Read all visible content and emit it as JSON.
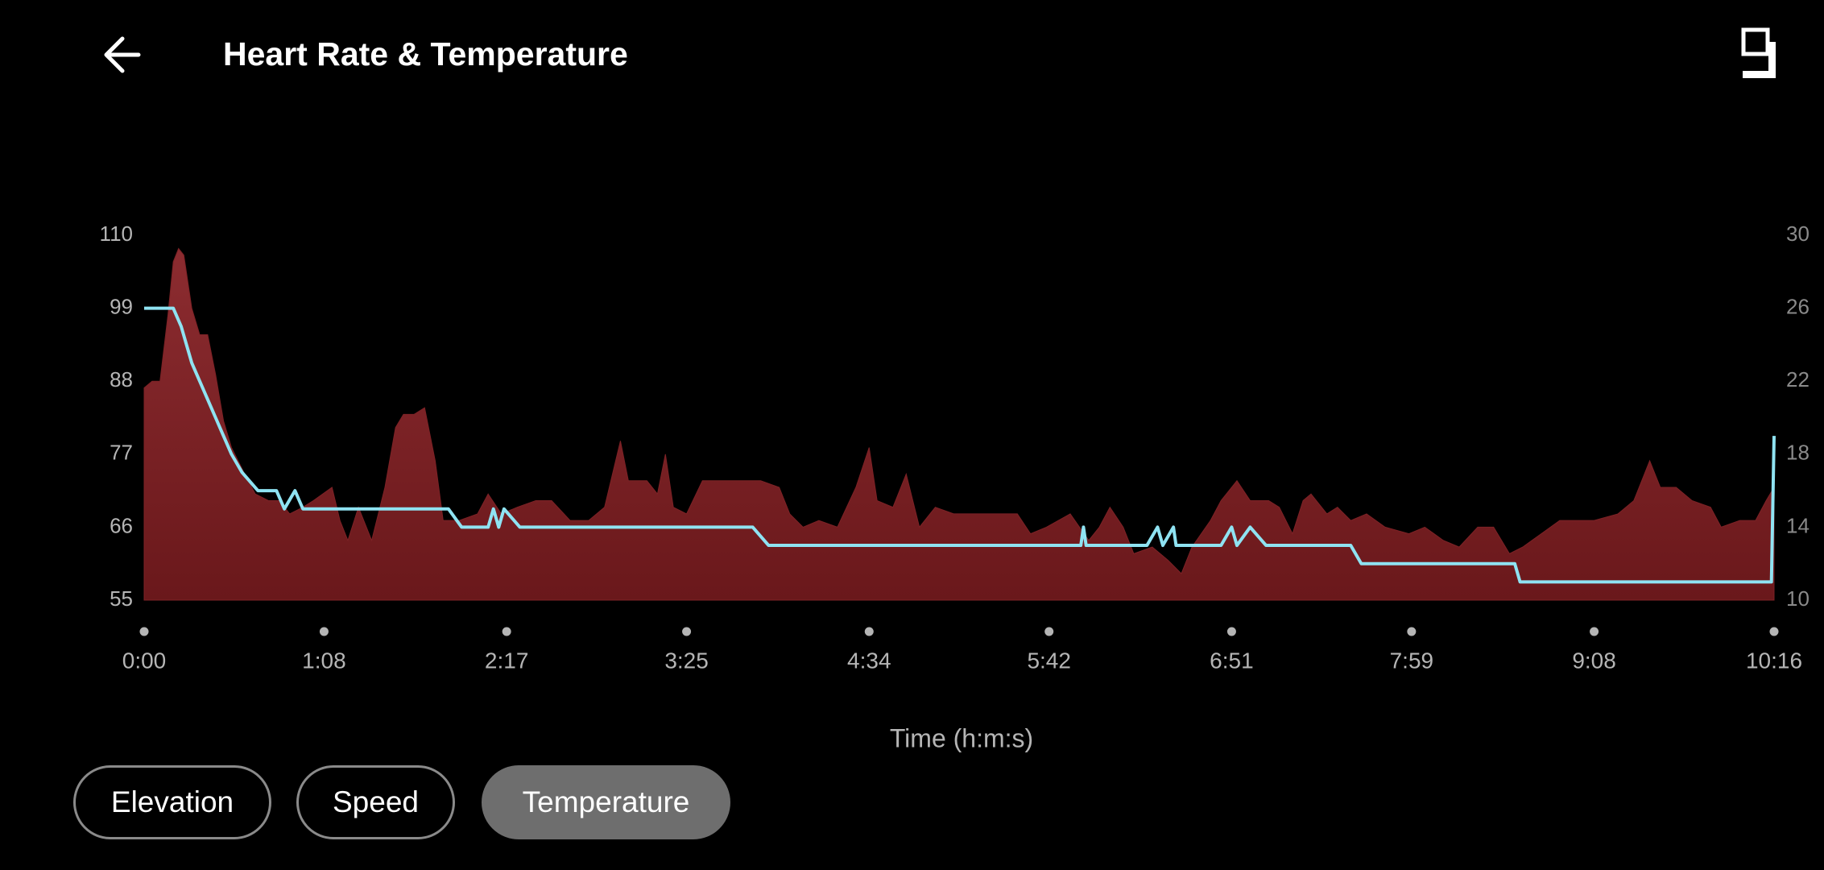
{
  "header": {
    "title": "Heart Rate & Temperature"
  },
  "chart_data": {
    "type": "area",
    "xlabel": "Time (h:m:s)",
    "xlim": [
      0,
      616
    ],
    "xticks": [
      {
        "value": 0,
        "label": "0:00"
      },
      {
        "value": 68,
        "label": "1:08"
      },
      {
        "value": 137,
        "label": "2:17"
      },
      {
        "value": 205,
        "label": "3:25"
      },
      {
        "value": 274,
        "label": "4:34"
      },
      {
        "value": 342,
        "label": "5:42"
      },
      {
        "value": 411,
        "label": "6:51"
      },
      {
        "value": 479,
        "label": "7:59"
      },
      {
        "value": 548,
        "label": "9:08"
      },
      {
        "value": 616,
        "label": "10:16"
      }
    ],
    "ylim": [
      55,
      110
    ],
    "yticks": [
      55,
      66,
      77,
      88,
      99,
      110
    ],
    "y2lim": [
      10,
      30
    ],
    "y2ticks": [
      10,
      14,
      18,
      22,
      26,
      30
    ],
    "grid": false,
    "series": [
      {
        "type": "area",
        "color": "#7d2226",
        "x": [
          0,
          3,
          6,
          9,
          11,
          13,
          15,
          18,
          21,
          24,
          27,
          30,
          33,
          38,
          42,
          47,
          51,
          55,
          60,
          64,
          71,
          74,
          77,
          81,
          86,
          91,
          95,
          98,
          102,
          106,
          110,
          113,
          119,
          126,
          130,
          135,
          141,
          148,
          154,
          161,
          168,
          174,
          180,
          183,
          190,
          194,
          197,
          200,
          205,
          211,
          216,
          220,
          227,
          233,
          240,
          244,
          249,
          255,
          262,
          269,
          274,
          277,
          283,
          288,
          293,
          299,
          306,
          315,
          324,
          330,
          335,
          341,
          350,
          357,
          361,
          365,
          370,
          374,
          381,
          387,
          392,
          396,
          403,
          407,
          413,
          418,
          425,
          429,
          434,
          438,
          441,
          447,
          451,
          456,
          462,
          469,
          478,
          484,
          491,
          497,
          504,
          510,
          516,
          521,
          528,
          535,
          541,
          548,
          557,
          563,
          569,
          573,
          579,
          585,
          592,
          596,
          603,
          609,
          613,
          616
        ],
        "values": [
          87,
          88,
          88,
          98,
          106,
          108,
          107,
          99,
          95,
          95,
          89,
          82,
          78,
          74,
          71,
          70,
          70,
          68,
          69,
          70,
          72,
          67,
          64,
          69,
          64,
          72,
          81,
          83,
          83,
          84,
          76,
          67,
          67,
          68,
          71,
          68,
          69,
          70,
          70,
          67,
          67,
          69,
          79,
          73,
          73,
          71,
          77,
          69,
          68,
          73,
          73,
          73,
          73,
          73,
          72,
          68,
          66,
          67,
          66,
          72,
          78,
          70,
          69,
          74,
          66,
          69,
          68,
          68,
          68,
          68,
          65,
          66,
          68,
          64,
          66,
          69,
          66,
          62,
          63,
          61,
          59,
          63,
          67,
          70,
          73,
          70,
          70,
          69,
          65,
          70,
          71,
          68,
          69,
          67,
          68,
          66,
          65,
          66,
          64,
          63,
          66,
          66,
          62,
          63,
          65,
          67,
          67,
          67,
          68,
          70,
          76,
          72,
          72,
          70,
          69,
          66,
          67,
          67,
          70,
          72
        ]
      },
      {
        "type": "line",
        "color": "#8fe3f2",
        "axis": "y2",
        "x": [
          0,
          11,
          14,
          16,
          18,
          21,
          24,
          27,
          30,
          33,
          37,
          43,
          50,
          53,
          57,
          60,
          115,
          120,
          130,
          132,
          134,
          136,
          142,
          230,
          236,
          354,
          355,
          356,
          379,
          383,
          385,
          389,
          390,
          407,
          411,
          413,
          418,
          424,
          456,
          460,
          518,
          520,
          615,
          616
        ],
        "values": [
          26,
          26,
          25,
          24,
          23,
          22,
          21,
          20,
          19,
          18,
          17,
          16,
          16,
          15,
          16,
          15,
          15,
          14,
          14,
          15,
          14,
          15,
          14,
          14,
          13,
          13,
          14,
          13,
          13,
          14,
          13,
          14,
          13,
          13,
          14,
          13,
          14,
          13,
          13,
          12,
          12,
          11,
          11,
          19
        ]
      }
    ]
  },
  "buttons": [
    {
      "label": "Elevation",
      "selected": false
    },
    {
      "label": "Speed",
      "selected": false
    },
    {
      "label": "Temperature",
      "selected": true
    }
  ]
}
